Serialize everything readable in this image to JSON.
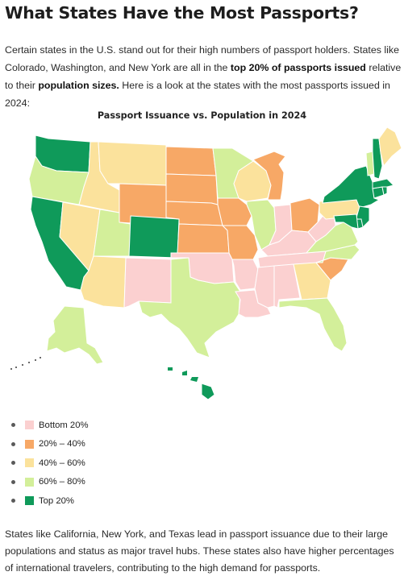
{
  "article": {
    "title": "What States Have the Most Passports?",
    "intro_part1": "Certain states in the U.S. stand out for their high numbers of passport holders. States like Colorado, Washington, and New York are all in the ",
    "intro_bold1": "top 20% of passports issued",
    "intro_part2": " relative to their ",
    "intro_bold2": "population sizes.",
    "intro_part3": " Here is a look at the states with the most passports issued in 2024:",
    "outro": "States like California, New York, and Texas lead in passport issuance due to their large populations and status as major travel hubs. These states also have higher percentages of international travelers, contributing to the high demand for passports."
  },
  "map": {
    "title": "Passport Issuance vs. Population in 2024",
    "categories": [
      {
        "id": "bottom20",
        "label": "Bottom 20%",
        "color": "#fbd0d0"
      },
      {
        "id": "q2",
        "label": "20% – 40%",
        "color": "#f7a866"
      },
      {
        "id": "q3",
        "label": "40% – 60%",
        "color": "#fbe29c"
      },
      {
        "id": "q4",
        "label": "60% – 80%",
        "color": "#d3ef9a"
      },
      {
        "id": "top20",
        "label": "Top 20%",
        "color": "#0f9a5a"
      }
    ],
    "states": {
      "WA": "top20",
      "OR": "q4",
      "CA": "top20",
      "ID": "q3",
      "NV": "q3",
      "MT": "q3",
      "WY": "q2",
      "UT": "q4",
      "AZ": "q3",
      "CO": "top20",
      "NM": "bottom20",
      "ND": "q2",
      "SD": "q2",
      "NE": "q2",
      "KS": "q2",
      "OK": "bottom20",
      "TX": "q4",
      "MN": "q4",
      "IA": "q2",
      "MO": "q2",
      "AR": "bottom20",
      "LA": "bottom20",
      "WI": "q3",
      "IL": "q4",
      "MI": "q2",
      "IN": "bottom20",
      "OH": "q2",
      "KY": "bottom20",
      "TN": "bottom20",
      "MS": "bottom20",
      "AL": "bottom20",
      "GA": "q3",
      "FL": "q4",
      "SC": "q2",
      "NC": "q4",
      "VA": "q4",
      "WV": "bottom20",
      "PA": "q3",
      "NY": "top20",
      "VT": "q4",
      "NH": "top20",
      "ME": "q3",
      "MA": "top20",
      "CT": "top20",
      "RI": "top20",
      "NJ": "top20",
      "DE": "top20",
      "MD": "top20",
      "AK": "q4",
      "HI": "top20"
    }
  }
}
